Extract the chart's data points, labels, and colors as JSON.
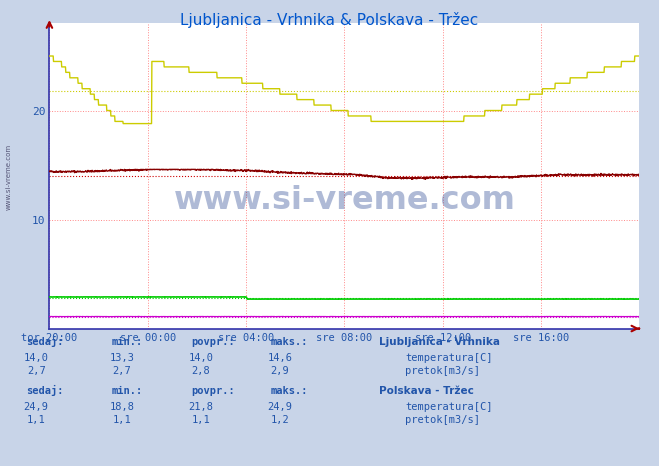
{
  "title": "Ljubljanica - Vrhnika & Polskava - Tržec",
  "title_color": "#0055cc",
  "bg_color": "#c8d4e8",
  "plot_bg_color": "#ffffff",
  "grid_color": "#ff8888",
  "x_tick_labels": [
    "tor 20:00",
    "sre 00:00",
    "sre 04:00",
    "sre 08:00",
    "sre 12:00",
    "sre 16:00"
  ],
  "x_tick_positions": [
    0,
    288,
    576,
    864,
    1152,
    1440
  ],
  "n_points": 1728,
  "ylim": [
    0,
    28
  ],
  "yticks": [
    10,
    20
  ],
  "watermark": "www.si-vreme.com",
  "avg_lines": [
    {
      "value": 14.0,
      "color": "#cc0000"
    },
    {
      "value": 2.8,
      "color": "#00cc00"
    },
    {
      "value": 21.8,
      "color": "#cccc00"
    },
    {
      "value": 1.1,
      "color": "#cc00cc"
    }
  ],
  "footer": {
    "headers": [
      "sedaj:",
      "min.:",
      "povpr.:",
      "maks.:"
    ],
    "group1_name": "Ljubljanica - Vrhnika",
    "group1_rows": [
      {
        "label": "temperatura[C]",
        "color": "#cc0000",
        "sedaj": "14,0",
        "min": "13,3",
        "povpr": "14,0",
        "maks": "14,6"
      },
      {
        "label": "pretok[m3/s]",
        "color": "#00cc00",
        "sedaj": "2,7",
        "min": "2,7",
        "povpr": "2,8",
        "maks": "2,9"
      }
    ],
    "group2_name": "Polskava - Tržec",
    "group2_rows": [
      {
        "label": "temperatura[C]",
        "color": "#cccc00",
        "sedaj": "24,9",
        "min": "18,8",
        "povpr": "21,8",
        "maks": "24,9"
      },
      {
        "label": "pretok[m3/s]",
        "color": "#cc00cc",
        "sedaj": "1,1",
        "min": "1,1",
        "povpr": "1,1",
        "maks": "1,2"
      }
    ]
  }
}
